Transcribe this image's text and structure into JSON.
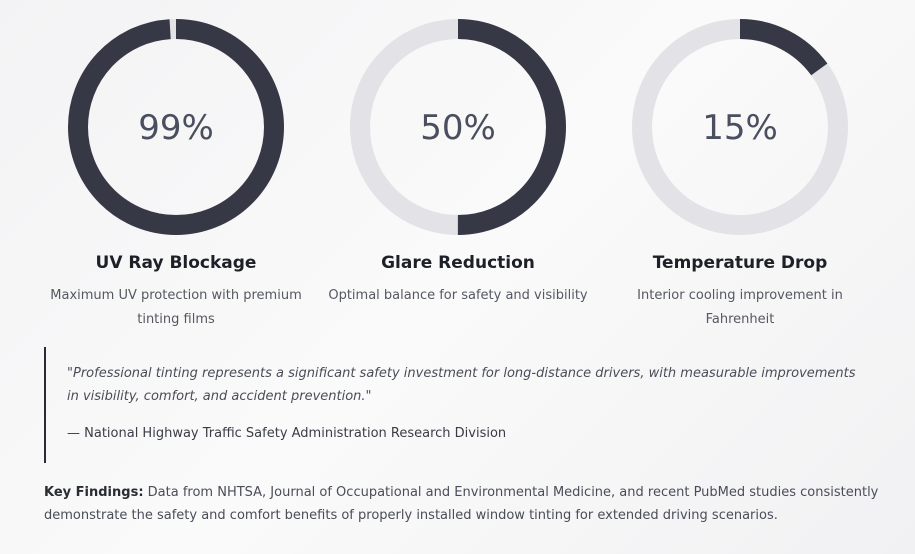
{
  "stats": {
    "range": [
      0,
      100
    ],
    "items": [
      {
        "value": 99,
        "value_label": "99%",
        "title": "UV Ray Blockage",
        "description": "Maximum UV protection with premium tinting films"
      },
      {
        "value": 50,
        "value_label": "50%",
        "title": "Glare Reduction",
        "description": "Optimal balance for safety and visibility"
      },
      {
        "value": 15,
        "value_label": "15%",
        "title": "Temperature Drop",
        "description": "Interior cooling improvement in Fahrenheit"
      }
    ]
  },
  "quote": {
    "text": "\"Professional tinting represents a significant safety investment for long-distance drivers, with measurable improvements in visibility, comfort, and accident prevention.\"",
    "attribution": "— National Highway Traffic Safety Administration Research Division"
  },
  "findings": {
    "label": "Key Findings:",
    "text": "Data from NHTSA, Journal of Occupational and Environmental Medicine, and recent PubMed studies consistently demonstrate the safety and comfort benefits of properly installed window tinting for extended driving scenarios."
  }
}
